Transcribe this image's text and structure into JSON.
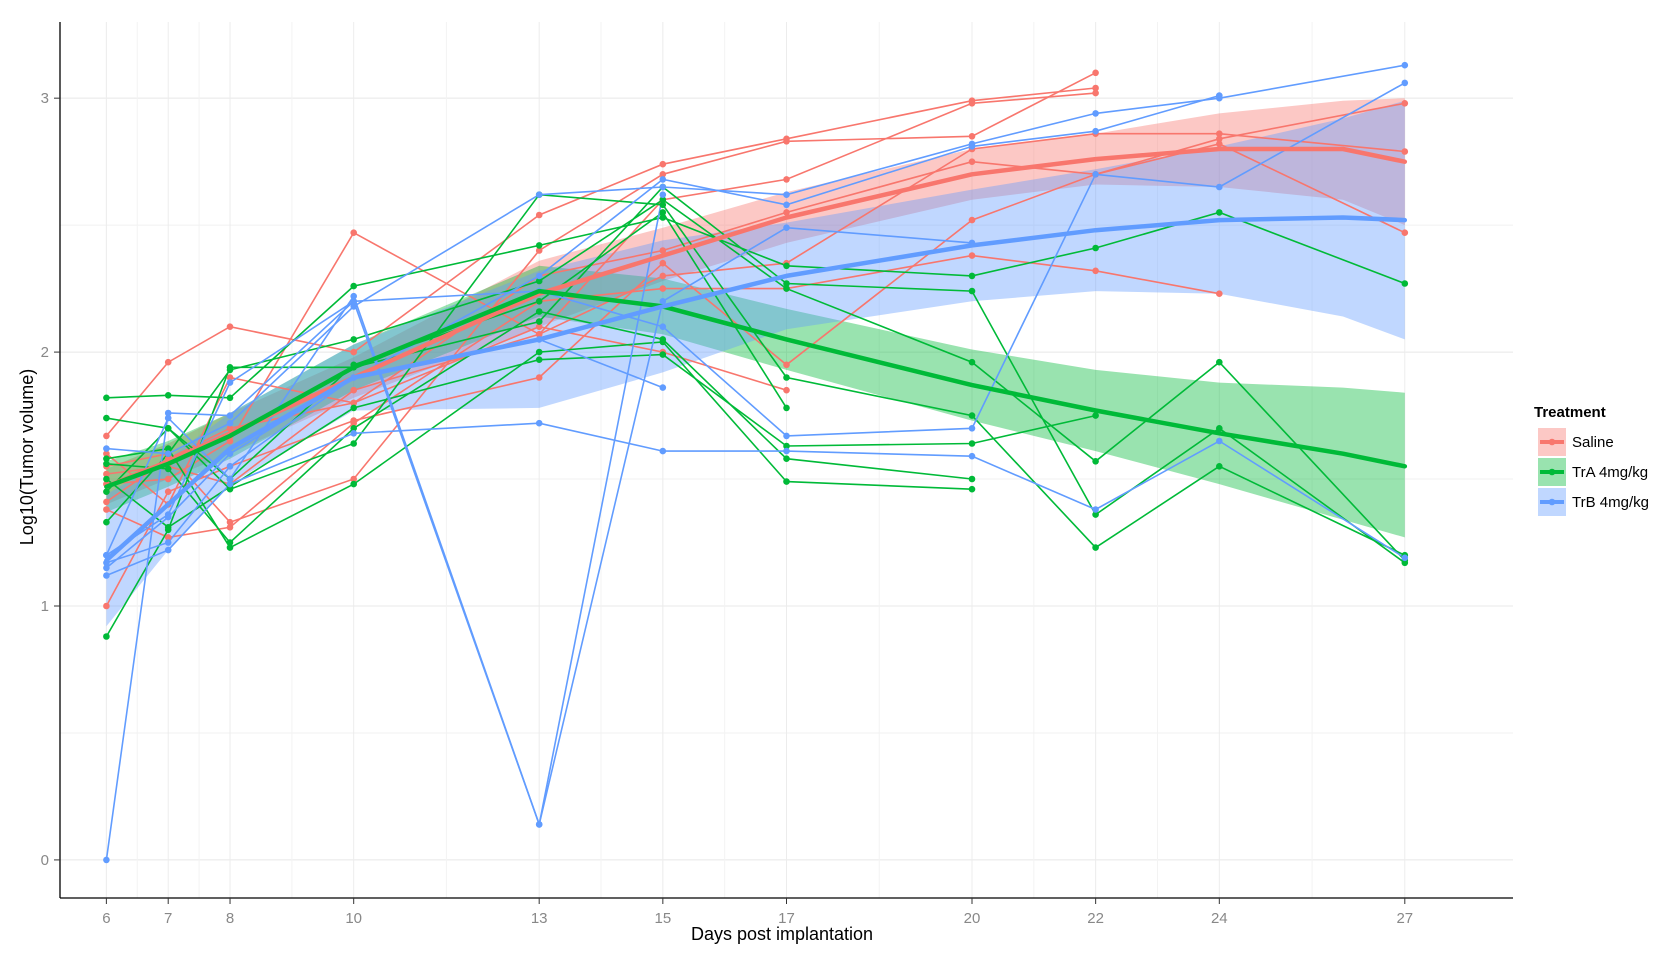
{
  "chart_data": {
    "type": "line",
    "xlabel": "Days post implantation",
    "ylabel": "Log10(Tumor volume)",
    "x_ticks": [
      6,
      7,
      8,
      10,
      13,
      15,
      17,
      20,
      22,
      24,
      27
    ],
    "y_ticks": [
      0,
      1,
      2,
      3
    ],
    "xlim": [
      5.25,
      28.75
    ],
    "ylim": [
      -0.15,
      3.3
    ],
    "grid": true,
    "legend": {
      "title": "Treatment",
      "position": "right"
    },
    "series": [
      {
        "name": "Saline",
        "color": "#F8766D",
        "individuals": [
          {
            "x": [
              6,
              7,
              8,
              10,
              13,
              15,
              17,
              20,
              22
            ],
            "y": [
              1.67,
              1.96,
              2.1,
              2.0,
              2.54,
              2.74,
              2.84,
              2.99,
              3.04
            ]
          },
          {
            "x": [
              6,
              7,
              8,
              10,
              13,
              15,
              17,
              20,
              22
            ],
            "y": [
              1.55,
              1.6,
              1.33,
              1.5,
              2.4,
              2.7,
              2.83,
              2.85,
              3.1
            ]
          },
          {
            "x": [
              6,
              7,
              8,
              10,
              13,
              15,
              17,
              20,
              22
            ],
            "y": [
              1.48,
              1.5,
              1.65,
              2.47,
              2.07,
              2.6,
              2.68,
              2.98,
              3.02
            ]
          },
          {
            "x": [
              6,
              7,
              8,
              10,
              13,
              15,
              17,
              20,
              22,
              24
            ],
            "y": [
              1.38,
              1.27,
              1.31,
              1.72,
              2.2,
              2.25,
              2.25,
              2.38,
              2.32,
              2.23
            ]
          },
          {
            "x": [
              6,
              7,
              8,
              10,
              13,
              15,
              17,
              20,
              22,
              24,
              27
            ],
            "y": [
              1.0,
              1.45,
              1.55,
              1.73,
              1.9,
              2.35,
              1.95,
              2.52,
              2.7,
              2.84,
              2.98
            ]
          },
          {
            "x": [
              6,
              7,
              8,
              10,
              13,
              15,
              17,
              20,
              22,
              24,
              27
            ],
            "y": [
              1.52,
              1.55,
              1.48,
              1.85,
              2.07,
              2.3,
              2.35,
              2.8,
              2.86,
              2.86,
              2.79
            ]
          },
          {
            "x": [
              6,
              7,
              8,
              10,
              13,
              15,
              17,
              20,
              22,
              24,
              27
            ],
            "y": [
              1.41,
              1.58,
              1.7,
              1.8,
              2.3,
              2.4,
              2.55,
              2.75,
              2.7,
              2.82,
              2.47
            ]
          },
          {
            "x": [
              6,
              7,
              8,
              10,
              13,
              15,
              17
            ],
            "y": [
              1.6,
              1.4,
              1.9,
              1.8,
              2.1,
              2.0,
              1.85
            ]
          }
        ],
        "smooth": {
          "x": [
            6,
            7,
            8,
            10,
            13,
            15,
            17,
            20,
            22,
            24,
            26,
            27
          ],
          "y": [
            1.47,
            1.57,
            1.68,
            1.9,
            2.23,
            2.38,
            2.53,
            2.7,
            2.76,
            2.8,
            2.8,
            2.75
          ],
          "lo": [
            1.4,
            1.5,
            1.6,
            1.82,
            2.1,
            2.28,
            2.43,
            2.6,
            2.66,
            2.65,
            2.6,
            2.5
          ],
          "hi": [
            1.54,
            1.64,
            1.76,
            1.98,
            2.36,
            2.49,
            2.63,
            2.8,
            2.86,
            2.94,
            2.99,
            3.0
          ]
        }
      },
      {
        "name": "TrA 4mg/kg",
        "color": "#00BA38",
        "individuals": [
          {
            "x": [
              6,
              7,
              8,
              10,
              13,
              15,
              17,
              20,
              22,
              24,
              27
            ],
            "y": [
              1.82,
              1.83,
              1.82,
              2.26,
              2.42,
              2.53,
              2.34,
              2.3,
              2.41,
              2.55,
              2.27
            ]
          },
          {
            "x": [
              6,
              7,
              8,
              10,
              13,
              15,
              17,
              20,
              22,
              24,
              27
            ],
            "y": [
              0.88,
              1.3,
              1.94,
              1.94,
              2.12,
              2.65,
              2.27,
              2.24,
              1.36,
              1.7,
              1.17
            ]
          },
          {
            "x": [
              6,
              7,
              8,
              10,
              13,
              15,
              17,
              20,
              22,
              24,
              27
            ],
            "y": [
              1.74,
              1.7,
              1.46,
              1.64,
              2.62,
              2.58,
              1.9,
              1.75,
              1.23,
              1.55,
              1.2
            ]
          },
          {
            "x": [
              6,
              7,
              8,
              10,
              13,
              15,
              17,
              20,
              22,
              24,
              27
            ],
            "y": [
              1.33,
              1.6,
              1.93,
              2.05,
              2.28,
              2.6,
              2.25,
              1.96,
              1.57,
              1.96,
              1.18
            ]
          },
          {
            "x": [
              6,
              7,
              8,
              10,
              13,
              15,
              17,
              20
            ],
            "y": [
              1.56,
              1.54,
              1.25,
              1.7,
              2.16,
              2.05,
              1.58,
              1.5
            ]
          },
          {
            "x": [
              6,
              7,
              8,
              10,
              13,
              15,
              17,
              20
            ],
            "y": [
              1.58,
              1.62,
              1.23,
              1.48,
              2.0,
              2.04,
              1.49,
              1.46
            ]
          },
          {
            "x": [
              6,
              7,
              8,
              10,
              13,
              15,
              17,
              20,
              22
            ],
            "y": [
              1.5,
              1.31,
              1.47,
              1.78,
              1.97,
              1.99,
              1.63,
              1.64,
              1.75
            ]
          },
          {
            "x": [
              6,
              7,
              8,
              10,
              13,
              15,
              17
            ],
            "y": [
              1.45,
              1.7,
              1.5,
              1.95,
              2.2,
              2.55,
              1.78
            ]
          }
        ],
        "smooth": {
          "x": [
            6,
            7,
            8,
            10,
            13,
            15,
            17,
            20,
            22,
            24,
            26,
            27
          ],
          "y": [
            1.47,
            1.56,
            1.67,
            1.94,
            2.24,
            2.18,
            2.05,
            1.87,
            1.77,
            1.68,
            1.6,
            1.55
          ],
          "lo": [
            1.37,
            1.47,
            1.58,
            1.85,
            2.14,
            2.07,
            1.93,
            1.73,
            1.61,
            1.48,
            1.34,
            1.27
          ],
          "hi": [
            1.57,
            1.65,
            1.76,
            2.03,
            2.34,
            2.29,
            2.17,
            2.01,
            1.93,
            1.88,
            1.86,
            1.84
          ]
        }
      },
      {
        "name": "TrB 4mg/kg",
        "color": "#619CFF",
        "individuals": [
          {
            "x": [
              6,
              7,
              8,
              10,
              13,
              15
            ],
            "y": [
              0.0,
              1.76,
              1.75,
              2.2,
              0.14,
              2.62
            ]
          },
          {
            "x": [
              6,
              7,
              8,
              10,
              13,
              15,
              17,
              20,
              22,
              24,
              27
            ],
            "y": [
              1.62,
              1.6,
              1.72,
              2.18,
              2.62,
              2.65,
              2.62,
              2.82,
              2.94,
              3.0,
              3.13
            ]
          },
          {
            "x": [
              6,
              7,
              8,
              10,
              13,
              15,
              17,
              20,
              22,
              24,
              27
            ],
            "y": [
              1.12,
              1.22,
              1.48,
              1.68,
              1.72,
              1.61,
              1.61,
              1.59,
              1.38,
              1.65,
              1.19
            ]
          },
          {
            "x": [
              6,
              7,
              8,
              10,
              13,
              15,
              17,
              20,
              22,
              24,
              27
            ],
            "y": [
              1.2,
              1.36,
              1.88,
              2.2,
              2.24,
              2.1,
              1.67,
              1.7,
              2.7,
              2.65,
              3.06
            ]
          },
          {
            "x": [
              6,
              7,
              8,
              10,
              13,
              15,
              17,
              20,
              22,
              24
            ],
            "y": [
              1.15,
              1.35,
              1.6,
              1.9,
              2.3,
              2.68,
              2.58,
              2.81,
              2.87,
              3.01
            ]
          },
          {
            "x": [
              6,
              7,
              8,
              10,
              13,
              15,
              17,
              20
            ],
            "y": [
              1.2,
              1.74,
              1.5,
              2.22,
              0.14,
              2.2,
              2.49,
              2.43
            ]
          },
          {
            "x": [
              6,
              7,
              8,
              10,
              13,
              15
            ],
            "y": [
              1.17,
              1.25,
              1.55,
              1.9,
              2.05,
              1.86
            ]
          }
        ],
        "smooth": {
          "x": [
            6,
            7,
            8,
            10,
            13,
            15,
            17,
            20,
            22,
            24,
            26,
            27
          ],
          "y": [
            1.18,
            1.4,
            1.62,
            1.9,
            2.05,
            2.18,
            2.3,
            2.42,
            2.48,
            2.52,
            2.53,
            2.52
          ],
          "lo": [
            0.92,
            1.22,
            1.48,
            1.77,
            1.78,
            1.92,
            2.09,
            2.2,
            2.24,
            2.23,
            2.14,
            2.05
          ],
          "hi": [
            1.44,
            1.58,
            1.76,
            2.03,
            2.32,
            2.44,
            2.51,
            2.64,
            2.72,
            2.81,
            2.92,
            2.99
          ]
        }
      }
    ]
  }
}
